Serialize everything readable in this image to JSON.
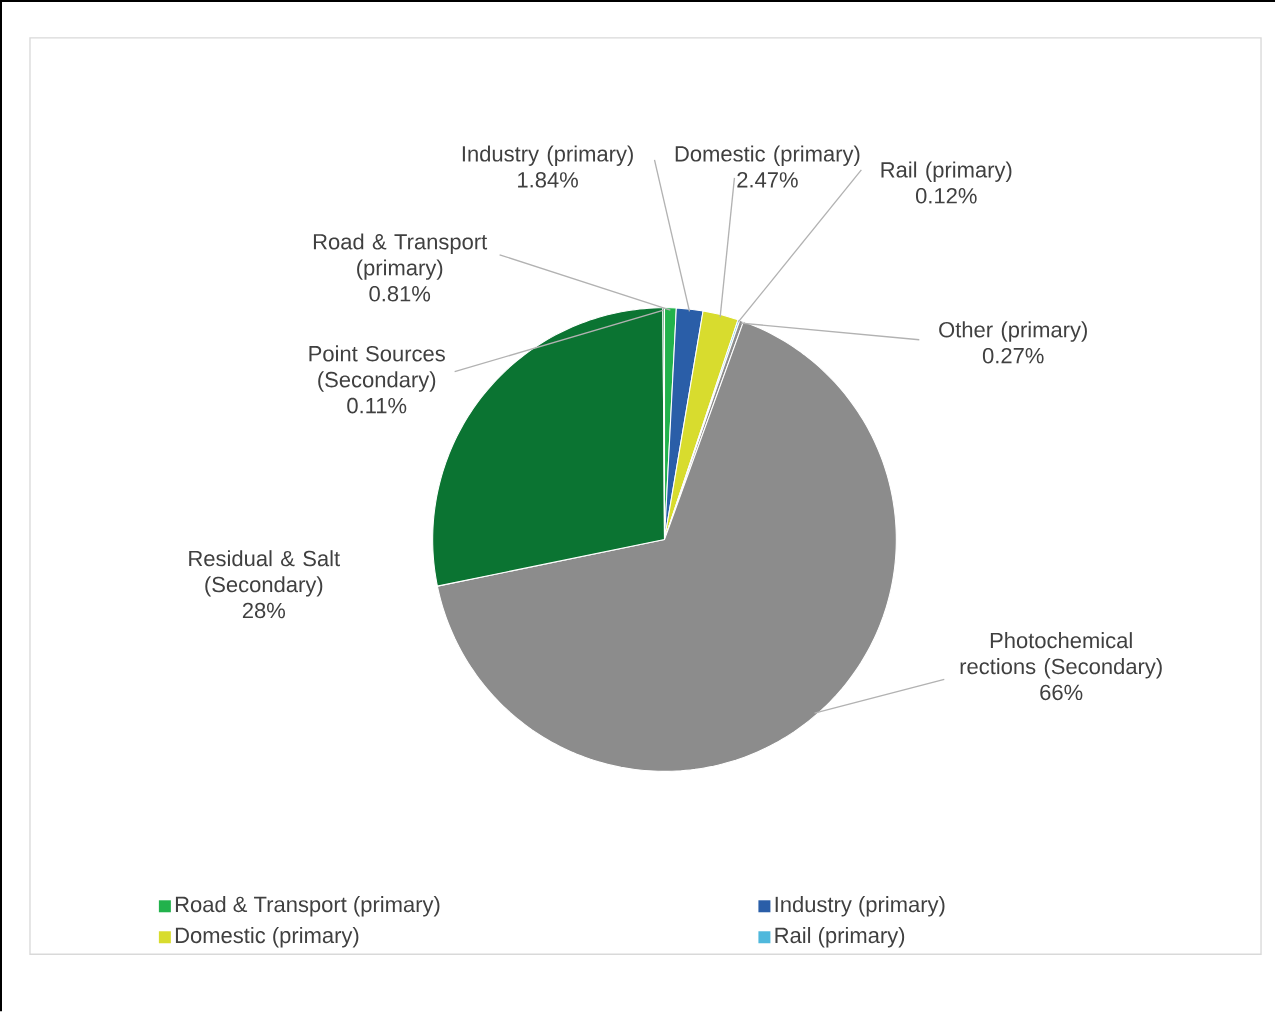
{
  "chart_data": {
    "type": "pie",
    "categories": [
      "Road & Transport (primary)",
      "Industry (primary)",
      "Domestic (primary)",
      "Rail (primary)",
      "Other (primary)",
      "Photochemical rections (Secondary)",
      "Residual & Salt (Secondary)",
      "Point Sources (Secondary)"
    ],
    "values": [
      0.81,
      1.84,
      2.47,
      0.12,
      0.27,
      66,
      28,
      0.11
    ],
    "value_labels": [
      "0.81%",
      "1.84%",
      "2.47%",
      "0.12%",
      "0.27%",
      "66%",
      "28%",
      "0.11%"
    ],
    "colors": [
      "#22b24c",
      "#2a5ea8",
      "#d8dc2e",
      "#4fb8dc",
      "#8c8c8c",
      "#8c8c8c",
      "#0b7432",
      "#0b7432"
    ],
    "legend": "bottom"
  }
}
